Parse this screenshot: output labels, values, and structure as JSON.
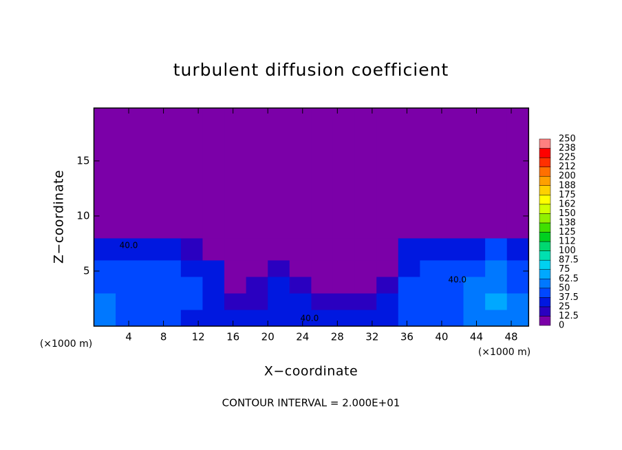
{
  "chart_data": {
    "type": "heatmap",
    "title": "turbulent diffusion coefficient",
    "xlabel": "X−coordinate",
    "ylabel": "Z−coordinate",
    "x_unit": "(×1000 m)",
    "y_unit": "(×1000 m)",
    "note": "CONTOUR INTERVAL = 2.000E+01",
    "xlim": [
      0,
      50
    ],
    "ylim": [
      0,
      19.8
    ],
    "xticks": [
      4,
      8,
      12,
      16,
      20,
      24,
      28,
      32,
      36,
      40,
      44,
      48
    ],
    "yticks": [
      5,
      10,
      15
    ],
    "x_edges": [
      0,
      2.5,
      5,
      7.5,
      10,
      12.5,
      15,
      17.5,
      20,
      22.5,
      25,
      27.5,
      30,
      32.5,
      35,
      37.5,
      40,
      42.5,
      45,
      47.5,
      50
    ],
    "z_edges": [
      0,
      1.5,
      3,
      4.5,
      6,
      8,
      19.8
    ],
    "values": [
      [
        55,
        45,
        40,
        45,
        35,
        30,
        25,
        30,
        35,
        30,
        25,
        25,
        30,
        35,
        40,
        40,
        45,
        55,
        60,
        50
      ],
      [
        50,
        40,
        45,
        40,
        40,
        35,
        20,
        20,
        30,
        25,
        15,
        15,
        20,
        25,
        40,
        40,
        45,
        55,
        65,
        50
      ],
      [
        45,
        40,
        40,
        45,
        40,
        35,
        10,
        15,
        30,
        20,
        10,
        10,
        10,
        15,
        40,
        40,
        45,
        50,
        60,
        45
      ],
      [
        40,
        40,
        40,
        40,
        35,
        30,
        8,
        8,
        15,
        10,
        8,
        8,
        8,
        10,
        35,
        40,
        40,
        45,
        55,
        45
      ],
      [
        30,
        35,
        35,
        25,
        15,
        8,
        5,
        5,
        5,
        5,
        5,
        5,
        5,
        8,
        25,
        30,
        30,
        35,
        40,
        30
      ],
      [
        5,
        5,
        5,
        5,
        5,
        5,
        5,
        5,
        5,
        5,
        5,
        5,
        5,
        5,
        5,
        5,
        5,
        5,
        5,
        5
      ]
    ],
    "colorbar": {
      "ticks": [
        0,
        12.5,
        25,
        37.5,
        50,
        62.5,
        75,
        87.5,
        100,
        {
          "value": 112.5,
          "label": "112"
        },
        125,
        {
          "value": 137.5,
          "label": "138"
        },
        150,
        {
          "value": 162.5,
          "label": "162"
        },
        175,
        {
          "value": 187.5,
          "label": "188"
        },
        200,
        {
          "value": 212.5,
          "label": "212"
        },
        225,
        {
          "value": 237.5,
          "label": "238"
        },
        250
      ],
      "colors": [
        "#7b00a8",
        "#2a00c0",
        "#0018e0",
        "#0048ff",
        "#0078ff",
        "#00a8ff",
        "#00d0f0",
        "#00e0b0",
        "#00d870",
        "#00d020",
        "#40e000",
        "#90f000",
        "#d0ff00",
        "#ffff00",
        "#ffd000",
        "#ffa000",
        "#ff7000",
        "#ff3000",
        "#ff0000",
        "#ff8080"
      ]
    },
    "contour_labels": [
      {
        "text": "40.0",
        "x": 24.8,
        "z": 0.7
      },
      {
        "text": "40.0",
        "x": 41.8,
        "z": 4.2
      },
      {
        "text": "40.0",
        "x": 4.0,
        "z": 7.3
      }
    ]
  }
}
